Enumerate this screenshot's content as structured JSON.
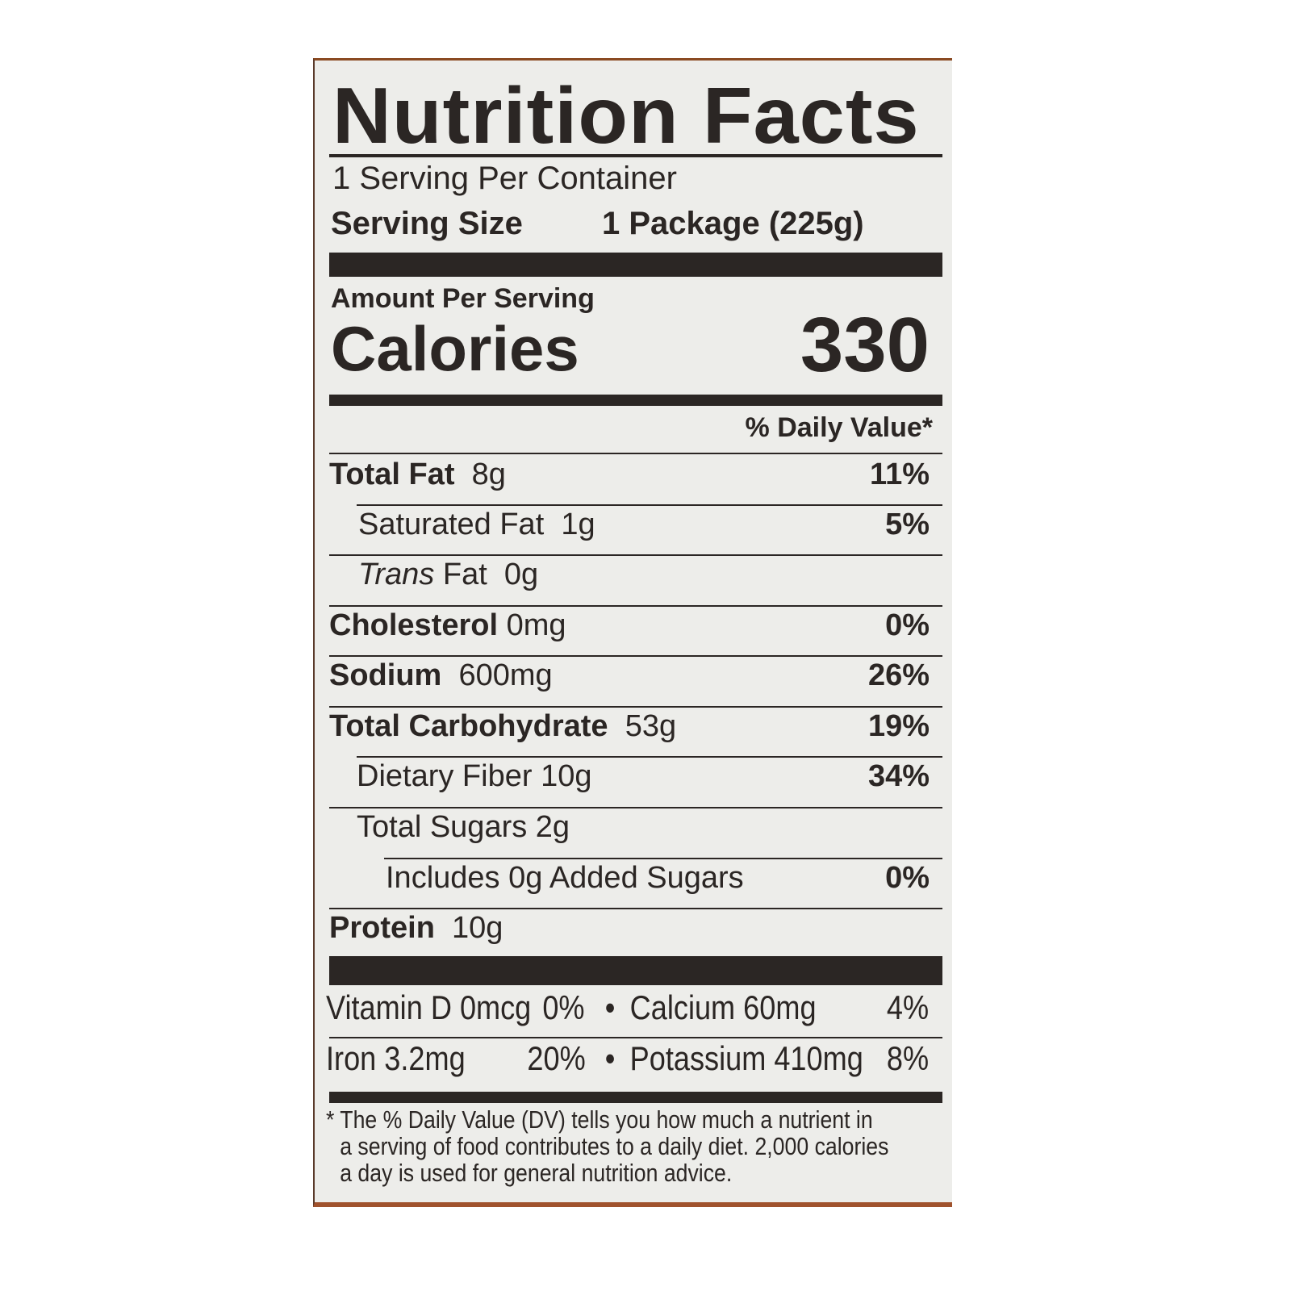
{
  "title": "Nutrition Facts",
  "servings_per_container": "1 Serving Per Container",
  "serving_size_label": "Serving Size",
  "serving_size_value": "1 Package (225g)",
  "amount_per_serving": "Amount Per Serving",
  "calories_label": "Calories",
  "calories_value": "330",
  "dv_header": "% Daily Value*",
  "nutrients": [
    {
      "name": "Total Fat",
      "amount": "8g",
      "dv": "11%"
    },
    {
      "name": "Saturated Fat",
      "amount": "1g",
      "dv": "5%"
    },
    {
      "name_italic": "Trans",
      "name": "Fat",
      "amount": "0g",
      "dv": ""
    },
    {
      "name": "Cholesterol",
      "amount": "0mg",
      "dv": "0%"
    },
    {
      "name": "Sodium",
      "amount": "600mg",
      "dv": "26%"
    },
    {
      "name": "Total Carbohydrate",
      "amount": "53g",
      "dv": "19%"
    },
    {
      "name": "Dietary Fiber",
      "amount": "10g",
      "dv": "34%"
    },
    {
      "name": "Total Sugars",
      "amount": "2g",
      "dv": ""
    },
    {
      "name": "Includes 0g Added Sugars",
      "amount": "",
      "dv": "0%"
    },
    {
      "name": "Protein",
      "amount": "10g",
      "dv": ""
    }
  ],
  "micros": [
    {
      "left": "Vitamin D 0mcg",
      "left_dv": "0%",
      "right": "Calcium 60mg",
      "right_dv": "4%"
    },
    {
      "left": "Iron 3.2mg",
      "left_dv": "20%",
      "right": "Potassium 410mg",
      "right_dv": "8%"
    }
  ],
  "bullet": "•",
  "footnote": [
    "* The % Daily Value (DV) tells you how much a nutrient in",
    "a serving of food contributes to a daily diet. 2,000 calories",
    "a day is used for general nutrition advice."
  ]
}
